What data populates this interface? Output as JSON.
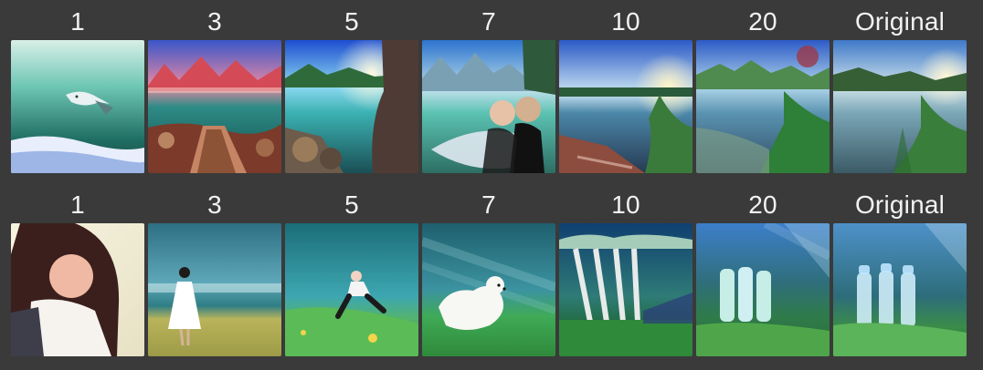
{
  "rows": [
    {
      "labels": [
        "1",
        "3",
        "5",
        "7",
        "10",
        "20",
        "Original"
      ],
      "images": [
        "dolphin-underwater",
        "mountain-lake-with-boardwalk",
        "sunlit-lake-with-rocks",
        "people-on-lakeshore",
        "river-at-sunset",
        "lake-with-meadow",
        "lake-with-grass-original"
      ]
    },
    {
      "labels": [
        "1",
        "3",
        "5",
        "7",
        "10",
        "20",
        "Original"
      ],
      "images": [
        "woman-portrait",
        "woman-in-white-dress-on-beach",
        "person-jumping-on-grass",
        "white-dog-running",
        "white-trees",
        "people-in-sunlight",
        "water-bottles-original"
      ]
    }
  ]
}
